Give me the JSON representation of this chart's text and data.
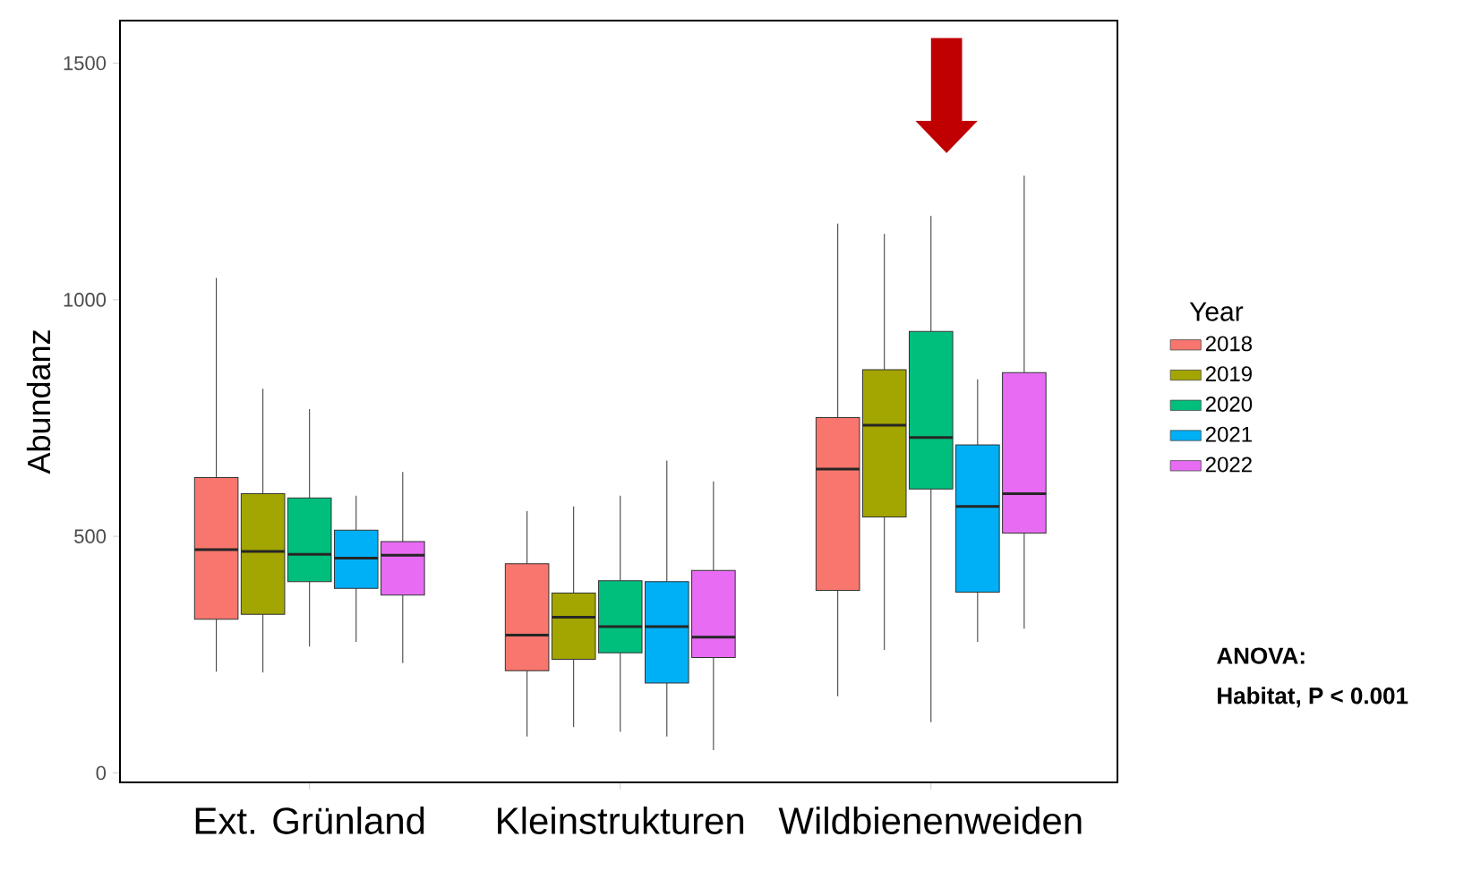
{
  "chart_data": {
    "type": "box",
    "ylabel": "Abundanz",
    "legend_title": "Year",
    "legend": "right",
    "categories": [
      "Ext. Grünland",
      "Kleinstrukturen",
      "Wildbienenweiden"
    ],
    "ylim": [
      -20,
      1590
    ],
    "yticks": [
      0,
      500,
      1000,
      1500
    ],
    "series": [
      {
        "name": "2018",
        "color": "#F8766D",
        "boxes": [
          {
            "low": 214,
            "q1": 325,
            "median": 472,
            "q3": 624,
            "high": 1046
          },
          {
            "low": 77,
            "q1": 216,
            "median": 291,
            "q3": 442,
            "high": 553
          },
          {
            "low": 162,
            "q1": 386,
            "median": 642,
            "q3": 751,
            "high": 1161
          }
        ]
      },
      {
        "name": "2019",
        "color": "#A3A500",
        "boxes": [
          {
            "low": 212,
            "q1": 335,
            "median": 468,
            "q3": 590,
            "high": 812
          },
          {
            "low": 97,
            "q1": 240,
            "median": 329,
            "q3": 380,
            "high": 563
          },
          {
            "low": 260,
            "q1": 541,
            "median": 735,
            "q3": 852,
            "high": 1139
          }
        ]
      },
      {
        "name": "2020",
        "color": "#00BF7D",
        "boxes": [
          {
            "low": 267,
            "q1": 404,
            "median": 462,
            "q3": 581,
            "high": 769
          },
          {
            "low": 87,
            "q1": 254,
            "median": 309,
            "q3": 406,
            "high": 586
          },
          {
            "low": 107,
            "q1": 600,
            "median": 709,
            "q3": 933,
            "high": 1177
          }
        ]
      },
      {
        "name": "2021",
        "color": "#00B0F6",
        "boxes": [
          {
            "low": 277,
            "q1": 390,
            "median": 454,
            "q3": 513,
            "high": 586
          },
          {
            "low": 77,
            "q1": 190,
            "median": 309,
            "q3": 404,
            "high": 660
          },
          {
            "low": 277,
            "q1": 382,
            "median": 563,
            "q3": 693,
            "high": 832
          }
        ]
      },
      {
        "name": "2022",
        "color": "#E76BF3",
        "boxes": [
          {
            "low": 232,
            "q1": 376,
            "median": 460,
            "q3": 489,
            "high": 636
          },
          {
            "low": 48,
            "q1": 244,
            "median": 287,
            "q3": 428,
            "high": 616
          },
          {
            "low": 305,
            "q1": 507,
            "median": 590,
            "q3": 846,
            "high": 1262
          }
        ]
      }
    ],
    "annotations": [
      "ANOVA:",
      "Habitat, P < 0.001"
    ]
  }
}
